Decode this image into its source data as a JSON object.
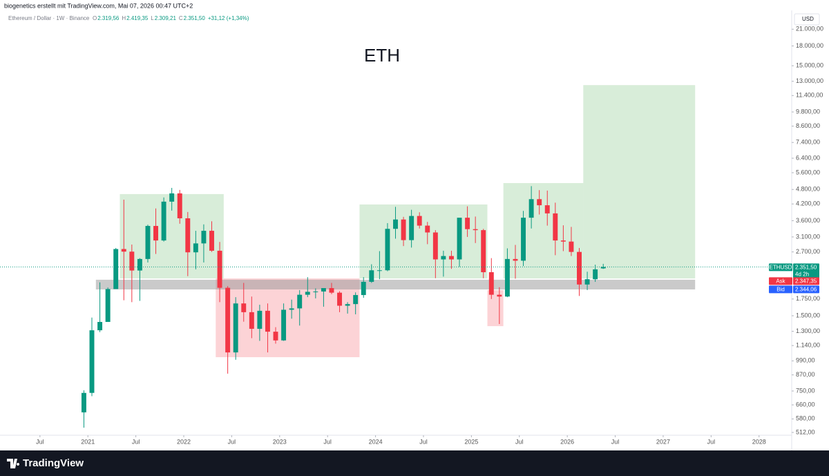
{
  "header": {
    "author": "biogenetics erstellt mit TradingView.com, Mai 07, 2026 00:47 UTC+2",
    "symbol": "Ethereum / Dollar · 1W · Binance",
    "ohlc": [
      {
        "key": "O",
        "value": "2.319,56"
      },
      {
        "key": "H",
        "value": "2.419,35"
      },
      {
        "key": "L",
        "value": "2.309,21"
      },
      {
        "key": "C",
        "value": "2.351,50"
      }
    ],
    "change": "+31,12 (+1,34%)",
    "currency": "USD"
  },
  "price_scale": {
    "last": {
      "name": "ETHUSD",
      "value": "2.351,50",
      "countdown": "4d 2h"
    },
    "ask": {
      "name": "Ask",
      "value": "2.347,35"
    },
    "bid": {
      "name": "Bid",
      "value": "2.344,06"
    }
  },
  "footer": {
    "brand": "TradingView"
  },
  "chart_data": {
    "type": "candlestick",
    "title": "ETH",
    "log_scale": true,
    "grid": false,
    "up_color": "#089981",
    "down_color": "#f23645",
    "x": [
      "2020-12",
      "2021-01",
      "2021-02",
      "2021-03",
      "2021-04",
      "2021-05",
      "2021-06",
      "2021-07",
      "2021-08",
      "2021-09",
      "2021-10",
      "2021-11",
      "2021-12",
      "2022-01",
      "2022-02",
      "2022-03",
      "2022-04",
      "2022-05",
      "2022-06",
      "2022-07",
      "2022-08",
      "2022-09",
      "2022-10",
      "2022-11",
      "2022-12",
      "2023-01",
      "2023-02",
      "2023-03",
      "2023-04",
      "2023-05",
      "2023-06",
      "2023-07",
      "2023-08",
      "2023-09",
      "2023-10",
      "2023-11",
      "2023-12",
      "2024-01",
      "2024-02",
      "2024-03",
      "2024-04",
      "2024-05",
      "2024-06",
      "2024-07",
      "2024-08",
      "2024-09",
      "2024-10",
      "2024-11",
      "2024-12",
      "2025-01",
      "2025-02",
      "2025-03",
      "2025-04",
      "2025-05",
      "2025-06",
      "2025-07",
      "2025-08",
      "2025-09",
      "2025-10",
      "2025-11",
      "2025-12",
      "2026-01",
      "2026-02",
      "2026-03",
      "2026-04",
      "2026-05"
    ],
    "open": [
      616,
      737,
      1312,
      1417,
      1918,
      2773,
      2707,
      2275,
      2530,
      3430,
      3000,
      4290,
      4630,
      3680,
      2690,
      2920,
      3280,
      2730,
      1940,
      1070,
      1680,
      1550,
      1330,
      1570,
      1295,
      1195,
      1585,
      1605,
      1820,
      1870,
      1875,
      1935,
      1855,
      1645,
      1670,
      1815,
      2050,
      2280,
      2280,
      3340,
      3640,
      3010,
      3760,
      3440,
      3230,
      2520,
      2600,
      2520,
      3700,
      3330,
      3300,
      2240,
      1820,
      1790,
      2530,
      2490,
      3700,
      4390,
      4150,
      3850,
      3000,
      2970,
      2700,
      2000,
      2100,
      2319.56
    ],
    "high": [
      755,
      1475,
      2040,
      1945,
      2800,
      4370,
      2890,
      2550,
      3470,
      4030,
      4460,
      4870,
      4780,
      3900,
      3280,
      3480,
      3580,
      2960,
      1970,
      1780,
      2030,
      1790,
      1660,
      1680,
      1350,
      1680,
      1740,
      1900,
      2140,
      1930,
      1930,
      2030,
      1880,
      1700,
      1860,
      2140,
      2410,
      2720,
      3520,
      4090,
      3730,
      3980,
      3890,
      3560,
      3300,
      2730,
      2730,
      3680,
      4110,
      3740,
      3340,
      2550,
      1950,
      2790,
      2880,
      3940,
      4950,
      4770,
      4750,
      4250,
      3450,
      3400,
      2800,
      2250,
      2400,
      2419.35
    ],
    "low": [
      535,
      715,
      1290,
      1440,
      1935,
      1730,
      1700,
      1720,
      2450,
      2650,
      2970,
      3950,
      3500,
      2160,
      2300,
      2450,
      2700,
      1700,
      880,
      1000,
      1420,
      1220,
      1190,
      1070,
      1160,
      1190,
      1460,
      1370,
      1780,
      1760,
      1630,
      1830,
      1550,
      1530,
      1520,
      1770,
      2030,
      2100,
      2260,
      3050,
      2850,
      2810,
      3350,
      2900,
      2120,
      2150,
      2310,
      2350,
      3100,
      2930,
      2120,
      1750,
      1390,
      1780,
      2110,
      2370,
      3350,
      3810,
      3440,
      2620,
      2720,
      2600,
      1800,
      1900,
      2050,
      2309.21
    ],
    "close": [
      737,
      1312,
      1417,
      1918,
      2773,
      2707,
      2275,
      2530,
      3430,
      3000,
      4290,
      4630,
      3680,
      2690,
      2920,
      3280,
      2730,
      1940,
      1070,
      1680,
      1550,
      1330,
      1570,
      1295,
      1195,
      1585,
      1605,
      1820,
      1870,
      1875,
      1935,
      1855,
      1645,
      1670,
      1815,
      2050,
      2280,
      2280,
      3340,
      3640,
      3010,
      3760,
      3440,
      3230,
      2520,
      2600,
      2520,
      3700,
      3330,
      3300,
      2240,
      1820,
      1790,
      2530,
      2490,
      3700,
      4390,
      4150,
      3850,
      3000,
      2970,
      2700,
      2000,
      2100,
      2300,
      2351.5
    ],
    "xlim": [
      "2020-02",
      "2028-05"
    ],
    "xticks": [
      {
        "value": "2020-07",
        "label": "Jul"
      },
      {
        "value": "2021-01",
        "label": "2021"
      },
      {
        "value": "2021-07",
        "label": "Jul"
      },
      {
        "value": "2022-01",
        "label": "2022"
      },
      {
        "value": "2022-07",
        "label": "Jul"
      },
      {
        "value": "2023-01",
        "label": "2023"
      },
      {
        "value": "2023-07",
        "label": "Jul"
      },
      {
        "value": "2024-01",
        "label": "2024"
      },
      {
        "value": "2024-07",
        "label": "Jul"
      },
      {
        "value": "2025-01",
        "label": "2025"
      },
      {
        "value": "2025-07",
        "label": "Jul"
      },
      {
        "value": "2026-01",
        "label": "2026"
      },
      {
        "value": "2026-07",
        "label": "Jul"
      },
      {
        "value": "2027-01",
        "label": "2027"
      },
      {
        "value": "2027-07",
        "label": "Jul"
      },
      {
        "value": "2028-01",
        "label": "2028"
      }
    ],
    "ylim": [
      499,
      24980
    ],
    "yticks": [
      {
        "value": 21000,
        "label": "21.000,00"
      },
      {
        "value": 18000,
        "label": "18.000,00"
      },
      {
        "value": 15000,
        "label": "15.000,00"
      },
      {
        "value": 13000,
        "label": "13.000,00"
      },
      {
        "value": 11400,
        "label": "11.400,00"
      },
      {
        "value": 9800,
        "label": "9.800,00"
      },
      {
        "value": 8600,
        "label": "8.600,00"
      },
      {
        "value": 7400,
        "label": "7.400,00"
      },
      {
        "value": 6400,
        "label": "6.400,00"
      },
      {
        "value": 5600,
        "label": "5.600,00"
      },
      {
        "value": 4800,
        "label": "4.800,00"
      },
      {
        "value": 4200,
        "label": "4.200,00"
      },
      {
        "value": 3600,
        "label": "3.600,00"
      },
      {
        "value": 3100,
        "label": "3.100,00"
      },
      {
        "value": 2700,
        "label": "2.700,00"
      },
      {
        "value": 1750,
        "label": "1.750,00"
      },
      {
        "value": 1500,
        "label": "1.500,00"
      },
      {
        "value": 1300,
        "label": "1.300,00"
      },
      {
        "value": 1140,
        "label": "1.140,00"
      },
      {
        "value": 990,
        "label": "990,00"
      },
      {
        "value": 870,
        "label": "870,00"
      },
      {
        "value": 750,
        "label": "750,00"
      },
      {
        "value": 660,
        "label": "660,00"
      },
      {
        "value": 580,
        "label": "580,00"
      },
      {
        "value": 512,
        "label": "512,00"
      }
    ],
    "zones": [
      {
        "start": "2021-05",
        "end": "2022-05",
        "top": 4600,
        "bottom": 2115,
        "color": "rgba(76,175,80,0.22)"
      },
      {
        "start": "2022-05",
        "end": "2023-10",
        "top": 2115,
        "bottom": 1024,
        "color": "rgba(242,54,69,0.22)"
      },
      {
        "start": "2023-11",
        "end": "2025-02",
        "top": 4180,
        "bottom": 2115,
        "color": "rgba(76,175,80,0.22)"
      },
      {
        "start": "2025-03",
        "end": "2025-04",
        "top": 1898,
        "bottom": 1363,
        "color": "rgba(242,54,69,0.22)"
      },
      {
        "start": "2025-05",
        "end": "2026-02",
        "top": 5090,
        "bottom": 2115,
        "color": "rgba(76,175,80,0.22)"
      },
      {
        "start": "2026-03",
        "end": "2027-04",
        "top": 12550,
        "bottom": 2115,
        "color": "rgba(76,175,80,0.22)"
      },
      {
        "start": "2021-02",
        "end": "2027-04",
        "top": 2090,
        "bottom": 1911,
        "color": "rgba(150,150,150,0.5)"
      }
    ]
  }
}
